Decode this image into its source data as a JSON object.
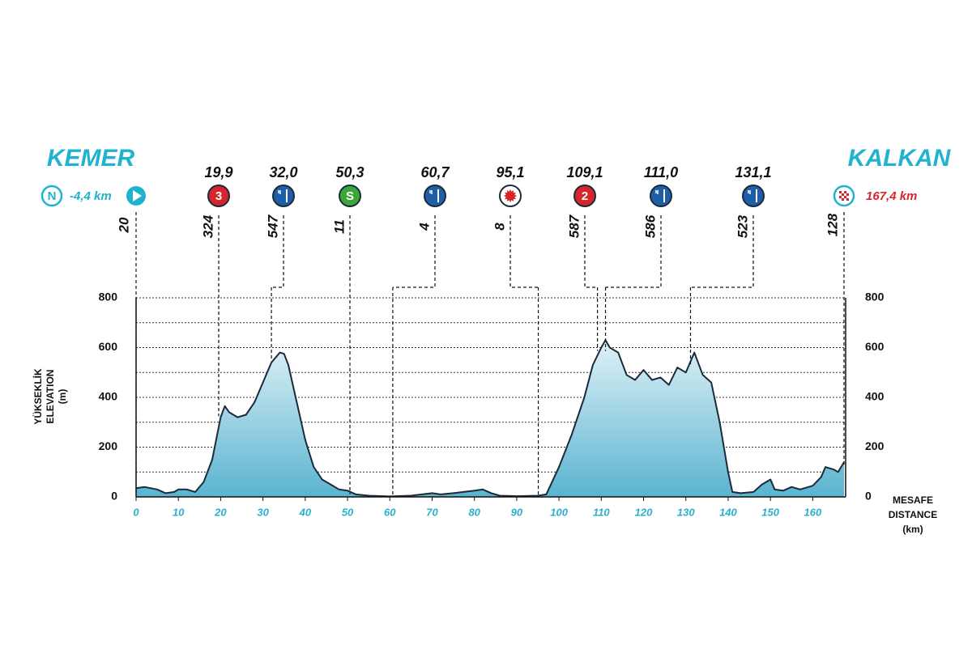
{
  "chart_data": {
    "type": "area",
    "x": [
      0,
      2,
      5,
      7,
      9,
      10,
      12,
      14,
      16,
      18,
      20,
      21,
      22,
      24,
      26,
      28,
      30,
      32,
      34,
      35,
      36,
      38,
      40,
      42,
      44,
      46,
      48,
      50,
      52,
      55,
      60,
      65,
      70,
      72,
      75,
      80,
      82,
      84,
      86,
      90,
      95,
      97,
      100,
      103,
      106,
      108,
      110,
      111,
      112,
      114,
      116,
      118,
      120,
      122,
      124,
      126,
      128,
      130,
      132,
      134,
      136,
      138,
      140,
      141,
      143,
      146,
      148,
      150,
      151,
      153,
      155,
      157,
      160,
      162,
      163,
      165,
      166,
      167.4
    ],
    "values": [
      35,
      40,
      30,
      15,
      20,
      30,
      30,
      20,
      60,
      150,
      320,
      365,
      340,
      320,
      330,
      380,
      460,
      540,
      580,
      575,
      530,
      380,
      230,
      120,
      70,
      50,
      30,
      25,
      10,
      5,
      2,
      5,
      15,
      10,
      15,
      25,
      30,
      15,
      5,
      3,
      5,
      10,
      120,
      250,
      400,
      530,
      600,
      630,
      600,
      580,
      490,
      470,
      510,
      470,
      480,
      450,
      520,
      500,
      580,
      490,
      460,
      300,
      100,
      20,
      15,
      20,
      50,
      70,
      30,
      25,
      40,
      30,
      45,
      80,
      120,
      110,
      100,
      140
    ],
    "color": "#1b2a3a",
    "fill_top": "#dff1f7",
    "fill_bottom": "#5ab4d0",
    "xlim": [
      0,
      167.4
    ],
    "xticks": [
      0,
      10,
      20,
      30,
      40,
      50,
      60,
      70,
      80,
      90,
      100,
      110,
      120,
      130,
      140,
      150,
      160
    ],
    "ylim": [
      0,
      800
    ],
    "yticks": [
      0,
      200,
      400,
      600,
      800
    ],
    "minor_yticks": [
      100,
      300,
      500,
      700
    ],
    "grid": true,
    "y_label": [
      "YÜKSEKLİK",
      "ELEVATION",
      "(m)"
    ],
    "x_label": [
      "MESAFE",
      "DISTANCE",
      "(km)"
    ],
    "start": {
      "name": "KEMER",
      "badge": "N",
      "neutral": {
        "value": -4.4,
        "label": "-4,4 km"
      },
      "elevation": 20
    },
    "finish": {
      "name": "KALKAN",
      "distance": {
        "value": 167.4,
        "label": "167,4 km"
      },
      "elevation": 128
    },
    "markers": [
      {
        "km": {
          "value": 19.9,
          "label": "19,9"
        },
        "elevation": 324,
        "kind": "climb",
        "badge": "3"
      },
      {
        "km": {
          "value": 32.0,
          "label": "32,0"
        },
        "elevation": 547,
        "kind": "feed"
      },
      {
        "km": {
          "value": 50.3,
          "label": "50,3"
        },
        "elevation": 11,
        "kind": "sprint",
        "badge": "S"
      },
      {
        "km": {
          "value": 60.7,
          "label": "60,7"
        },
        "elevation": 4,
        "kind": "feed"
      },
      {
        "km": {
          "value": 95.1,
          "label": "95,1"
        },
        "elevation": 8,
        "kind": "bonus"
      },
      {
        "km": {
          "value": 109.1,
          "label": "109,1"
        },
        "elevation": 587,
        "kind": "climb",
        "badge": "2"
      },
      {
        "km": {
          "value": 111.0,
          "label": "111,0"
        },
        "elevation": 586,
        "kind": "feed"
      },
      {
        "km": {
          "value": 131.1,
          "label": "131,1"
        },
        "elevation": 523,
        "kind": "feed"
      }
    ]
  }
}
